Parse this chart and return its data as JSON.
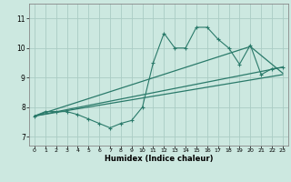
{
  "xlabel": "Humidex (Indice chaleur)",
  "bg_color": "#cce8e0",
  "line_color": "#2a7a6a",
  "grid_color": "#aaccc4",
  "xlim": [
    -0.5,
    23.5
  ],
  "ylim": [
    6.7,
    11.5
  ],
  "yticks": [
    7,
    8,
    9,
    10,
    11
  ],
  "xticks": [
    0,
    1,
    2,
    3,
    4,
    5,
    6,
    7,
    8,
    9,
    10,
    11,
    12,
    13,
    14,
    15,
    16,
    17,
    18,
    19,
    20,
    21,
    22,
    23
  ],
  "line1_x": [
    0,
    1,
    2,
    3,
    4,
    5,
    6,
    7,
    8,
    9,
    10,
    11,
    12,
    13,
    14,
    15,
    16,
    17,
    18,
    19,
    20,
    21,
    22,
    23
  ],
  "line1_y": [
    7.7,
    7.85,
    7.85,
    7.85,
    7.75,
    7.6,
    7.45,
    7.3,
    7.45,
    7.55,
    8.0,
    9.5,
    10.5,
    10.0,
    10.0,
    10.7,
    10.7,
    10.3,
    10.0,
    9.45,
    10.1,
    9.1,
    9.3,
    9.35
  ],
  "line2_x": [
    0,
    23
  ],
  "line2_y": [
    7.7,
    9.35
  ],
  "line3_x": [
    0,
    23
  ],
  "line3_y": [
    7.7,
    9.1
  ],
  "line4_x": [
    0,
    20,
    23
  ],
  "line4_y": [
    7.7,
    10.05,
    9.15
  ]
}
